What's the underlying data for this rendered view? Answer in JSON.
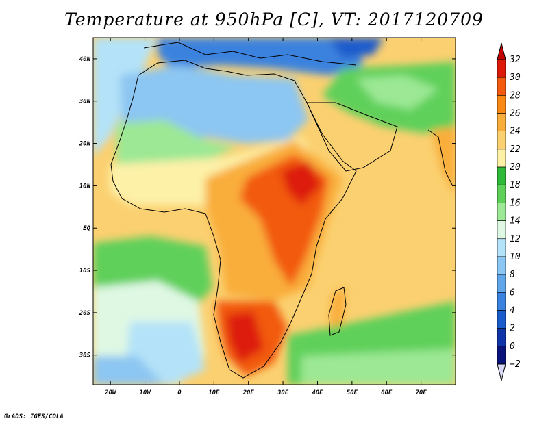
{
  "title": "Temperature at 950hPa [C], VT: 2017120709",
  "credit": "GrADS: IGES/COLA",
  "map": {
    "lon_range": [
      -25,
      80
    ],
    "lat_range": [
      -37,
      45
    ],
    "lon_ticks": [
      {
        "lon": -20,
        "label": "20W"
      },
      {
        "lon": -10,
        "label": "10W"
      },
      {
        "lon": 0,
        "label": "0"
      },
      {
        "lon": 10,
        "label": "10E"
      },
      {
        "lon": 20,
        "label": "20E"
      },
      {
        "lon": 30,
        "label": "30E"
      },
      {
        "lon": 40,
        "label": "40E"
      },
      {
        "lon": 50,
        "label": "50E"
      },
      {
        "lon": 60,
        "label": "60E"
      },
      {
        "lon": 70,
        "label": "70E"
      }
    ],
    "lat_ticks": [
      {
        "lat": 40,
        "label": "40N"
      },
      {
        "lat": 30,
        "label": "30N"
      },
      {
        "lat": 20,
        "label": "20N"
      },
      {
        "lat": 10,
        "label": "10N"
      },
      {
        "lat": 0,
        "label": "EQ"
      },
      {
        "lat": -10,
        "label": "10S"
      },
      {
        "lat": -20,
        "label": "20S"
      },
      {
        "lat": -30,
        "label": "30S"
      }
    ]
  },
  "colorbar": {
    "levels": [
      32,
      30,
      28,
      26,
      24,
      22,
      20,
      18,
      16,
      14,
      12,
      10,
      8,
      6,
      4,
      2,
      0,
      -2
    ],
    "colors": [
      "#dd1a08",
      "#f25a10",
      "#f88a14",
      "#f9ad3a",
      "#fbd070",
      "#fdf1a8",
      "#2fb83a",
      "#5ed05a",
      "#9ce894",
      "#dff8e4",
      "#b4e2f8",
      "#8cc6f2",
      "#62a6ea",
      "#3a82de",
      "#1a5ccc",
      "#0f34a8",
      "#0a137a"
    ],
    "over_color": "#c80000",
    "under_color": "#d8d8f8"
  },
  "fields": {
    "ocean_base_color": "#fbd070",
    "land_colors": {
      "north_africa": "#8cc6f2",
      "mediterranean": "#3a82de",
      "mideast": "#5ed05a",
      "sahel": "#fdf1a8",
      "central_africa": "#f9ad3a",
      "east_hot": "#f25a10",
      "south_hot": "#dd1a08"
    }
  }
}
